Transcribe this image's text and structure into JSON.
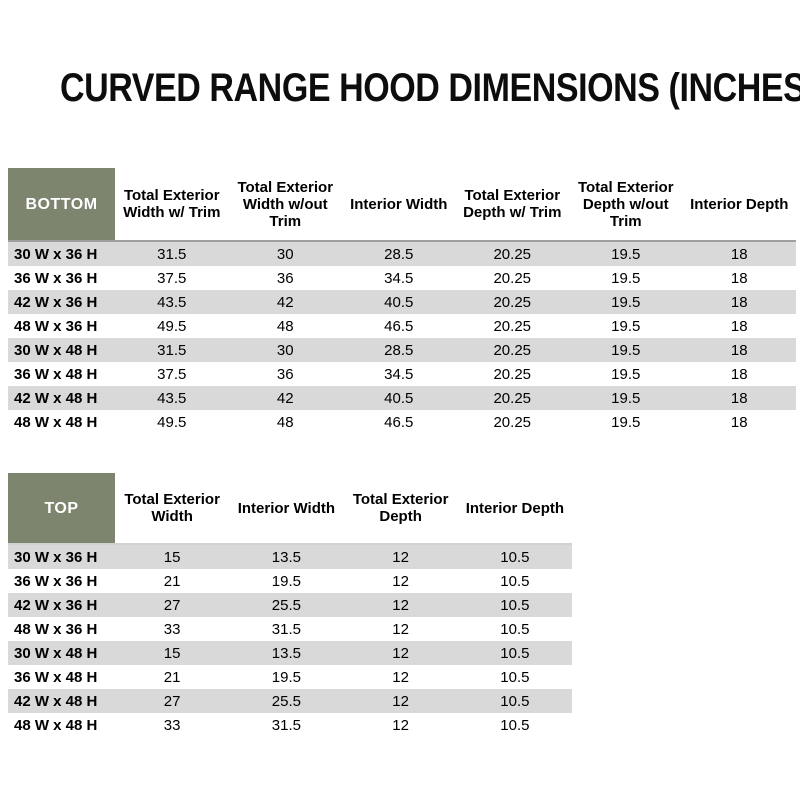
{
  "page": {
    "title": "CURVED RANGE HOOD DIMENSIONS (INCHES)"
  },
  "colors": {
    "corner_cell_green": "#7d856f",
    "corner_cell_text": "#ffffff",
    "stripe_gray": "#d9d9d9",
    "body_text": "#000000",
    "bottom_header_border": "#9f9f9f",
    "top_header_border": "#d2d2d2"
  },
  "tables": [
    {
      "id": "bottom-table",
      "corner_label": "BOTTOM",
      "columns": [
        "Total Exterior Width w/ Trim",
        "Total Exterior Width w/out Trim",
        "Interior Width",
        "Total Exterior Depth w/ Trim",
        "Total Exterior Depth w/out Trim",
        "Interior Depth"
      ],
      "rows": [
        {
          "label": "30 W x 36 H",
          "values": [
            "31.5",
            "30",
            "28.5",
            "20.25",
            "19.5",
            "18"
          ]
        },
        {
          "label": "36 W x 36 H",
          "values": [
            "37.5",
            "36",
            "34.5",
            "20.25",
            "19.5",
            "18"
          ]
        },
        {
          "label": "42 W x 36 H",
          "values": [
            "43.5",
            "42",
            "40.5",
            "20.25",
            "19.5",
            "18"
          ]
        },
        {
          "label": "48 W x 36 H",
          "values": [
            "49.5",
            "48",
            "46.5",
            "20.25",
            "19.5",
            "18"
          ]
        },
        {
          "label": "30 W x 48 H",
          "values": [
            "31.5",
            "30",
            "28.5",
            "20.25",
            "19.5",
            "18"
          ]
        },
        {
          "label": "36 W x 48 H",
          "values": [
            "37.5",
            "36",
            "34.5",
            "20.25",
            "19.5",
            "18"
          ]
        },
        {
          "label": "42 W x 48 H",
          "values": [
            "43.5",
            "42",
            "40.5",
            "20.25",
            "19.5",
            "18"
          ]
        },
        {
          "label": "48 W x 48 H",
          "values": [
            "49.5",
            "48",
            "46.5",
            "20.25",
            "19.5",
            "18"
          ]
        }
      ]
    },
    {
      "id": "top-table",
      "corner_label": "TOP",
      "columns": [
        "Total Exterior Width",
        "Interior Width",
        "Total Exterior Depth",
        "Interior Depth"
      ],
      "rows": [
        {
          "label": "30 W x 36 H",
          "values": [
            "15",
            "13.5",
            "12",
            "10.5"
          ]
        },
        {
          "label": "36 W x 36 H",
          "values": [
            "21",
            "19.5",
            "12",
            "10.5"
          ]
        },
        {
          "label": "42 W x 36 H",
          "values": [
            "27",
            "25.5",
            "12",
            "10.5"
          ]
        },
        {
          "label": "48 W x 36 H",
          "values": [
            "33",
            "31.5",
            "12",
            "10.5"
          ]
        },
        {
          "label": "30 W x 48 H",
          "values": [
            "15",
            "13.5",
            "12",
            "10.5"
          ]
        },
        {
          "label": "36 W x 48 H",
          "values": [
            "21",
            "19.5",
            "12",
            "10.5"
          ]
        },
        {
          "label": "42 W x 48 H",
          "values": [
            "27",
            "25.5",
            "12",
            "10.5"
          ]
        },
        {
          "label": "48 W x 48 H",
          "values": [
            "33",
            "31.5",
            "12",
            "10.5"
          ]
        }
      ]
    }
  ]
}
